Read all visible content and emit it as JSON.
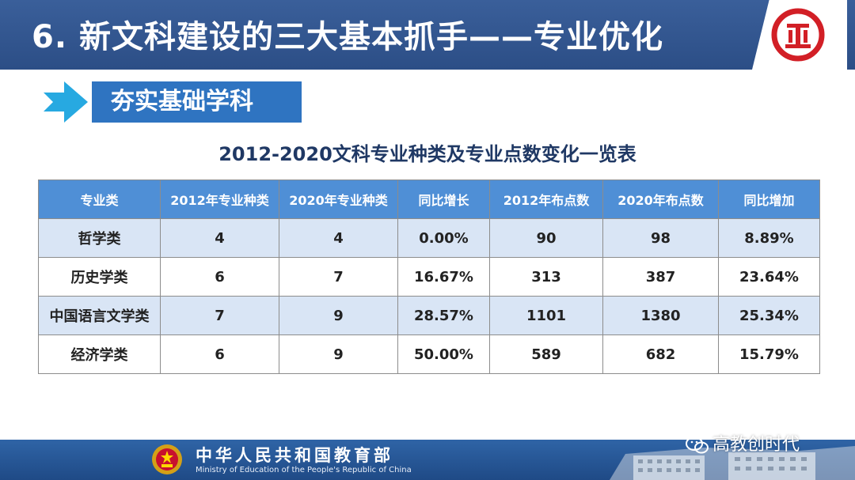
{
  "header": {
    "title": "6. 新文科建设的三大基本抓手——专业优化",
    "logo_icon": "red-circle-emblem-icon"
  },
  "section": {
    "arrow_icon": "arrow-right-icon",
    "label": "夯实基础学科"
  },
  "table": {
    "title": "2012-2020文科专业种类及专业点数变化一览表",
    "headers": [
      "专业类",
      "2012年专业种类",
      "2020年专业种类",
      "同比增长",
      "2012年布点数",
      "2020年布点数",
      "同比增加"
    ],
    "rows": [
      [
        "哲学类",
        "4",
        "4",
        "0.00%",
        "90",
        "98",
        "8.89%"
      ],
      [
        "历史学类",
        "6",
        "7",
        "16.67%",
        "313",
        "387",
        "23.64%"
      ],
      [
        "中国语言文学类",
        "7",
        "9",
        "28.57%",
        "1101",
        "1380",
        "25.34%"
      ],
      [
        "经济学类",
        "6",
        "9",
        "50.00%",
        "589",
        "682",
        "15.79%"
      ]
    ]
  },
  "footer": {
    "emblem_icon": "national-emblem-icon",
    "ministry_cn": "中华人民共和国教育部",
    "ministry_en": "Ministry of Education of the People's Republic of China"
  },
  "watermark": {
    "icon": "wechat-icon",
    "text": "高教创时代"
  },
  "colors": {
    "header_bg": "#2c4e86",
    "section_bg": "#2f74c1",
    "table_header_bg": "#4f8fd6",
    "table_stripe": "#d9e5f5",
    "title_text": "#1f3864",
    "footer_bg": "#1f4a86"
  }
}
